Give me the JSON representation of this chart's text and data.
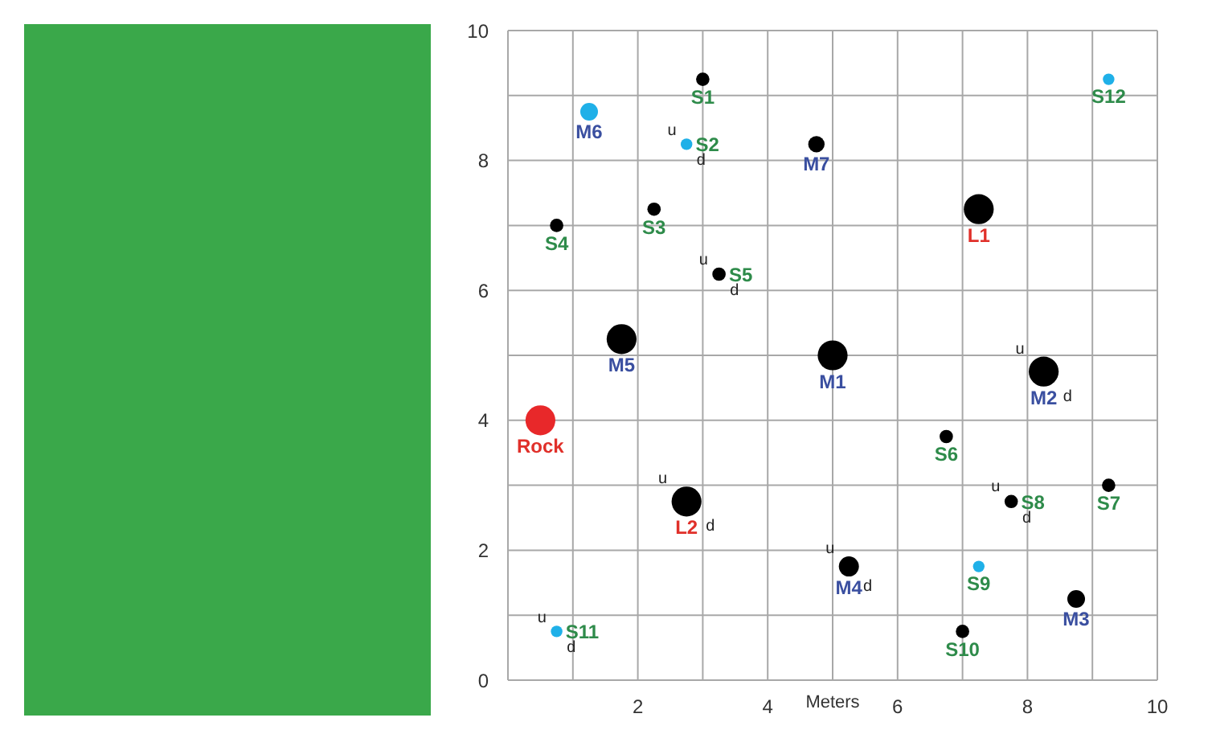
{
  "chart_data": {
    "type": "bubble",
    "xlabel": "Meters",
    "xlim": [
      0,
      10
    ],
    "ylim": [
      0,
      10
    ],
    "xticks": [
      {
        "value": 0,
        "label": null
      },
      {
        "value": 1,
        "label": null
      },
      2,
      {
        "value": 3,
        "label": null
      },
      4,
      {
        "value": 5,
        "label": null
      },
      6,
      {
        "value": 7,
        "label": null
      },
      8,
      {
        "value": 9,
        "label": null
      },
      10
    ],
    "yticks": [
      0,
      {
        "value": 1,
        "label": null
      },
      2,
      {
        "value": 3,
        "label": null
      },
      4,
      {
        "value": 5,
        "label": null
      },
      6,
      {
        "value": 7,
        "label": null
      },
      8,
      {
        "value": 9,
        "label": null
      },
      10
    ],
    "grid": true,
    "marker": "circle",
    "series": [
      {
        "color": "#2e8b4a",
        "x": [
          3.0,
          2.75,
          2.25,
          0.75,
          3.25,
          6.75,
          9.25,
          7.75,
          7.25,
          7.0,
          0.75,
          9.25
        ],
        "values": [
          9.25,
          8.25,
          7.25,
          7.0,
          6.25,
          3.75,
          3.0,
          2.75,
          1.75,
          0.75,
          0.75,
          9.25
        ],
        "sizes": [
          0.2,
          0.15,
          0.2,
          0.2,
          0.2,
          0.2,
          0.2,
          0.2,
          0.15,
          0.2,
          0.15,
          0.15
        ],
        "colors": [
          "#000000",
          "#1fb0e8",
          "#000000",
          "#000000",
          "#000000",
          "#000000",
          "#000000",
          "#000000",
          "#1fb0e8",
          "#000000",
          "#1fb0e8",
          "#1fb0e8"
        ],
        "value_labels": [
          "S1",
          "S2",
          "S3",
          "S4",
          "S5",
          "S6",
          "S7",
          "S8",
          "S9",
          "S10",
          "S11",
          "S12"
        ]
      },
      {
        "color": "#3a4fa0",
        "x": [
          5.0,
          8.25,
          8.75,
          5.25,
          1.75,
          1.25,
          4.75
        ],
        "values": [
          5.0,
          4.75,
          1.25,
          1.75,
          5.25,
          8.75,
          8.25
        ],
        "sizes": [
          1,
          1,
          0.35,
          0.45,
          1,
          0.35,
          0.3
        ],
        "colors": [
          "#000000",
          "#000000",
          "#000000",
          "#000000",
          "#000000",
          "#1fb0e8",
          "#000000"
        ],
        "value_labels": [
          "M1",
          "M2",
          "M3",
          "M4",
          "M5",
          "M6",
          "M7"
        ]
      },
      {
        "color": "#e0302a",
        "x": [
          7.25,
          2.75,
          0.5
        ],
        "values": [
          7.25,
          2.75,
          4.0
        ],
        "sizes": [
          1,
          1,
          1
        ],
        "colors": [
          "#000000",
          "#000000",
          "#e8282a"
        ],
        "value_labels": [
          "L1",
          "L2",
          "Rock"
        ]
      }
    ],
    "annotations": [
      {
        "text": "u",
        "x": 2.75,
        "y": 8.25
      },
      {
        "text": "d",
        "x": 2.75,
        "y": 8.25
      },
      {
        "text": "u",
        "x": 3.25,
        "y": 6.25
      },
      {
        "text": "d",
        "x": 3.25,
        "y": 6.25
      },
      {
        "text": "u",
        "x": 2.75,
        "y": 2.75
      },
      {
        "text": "d",
        "x": 2.75,
        "y": 2.75
      },
      {
        "text": "u",
        "x": 0.75,
        "y": 0.75
      },
      {
        "text": "d",
        "x": 0.75,
        "y": 0.75
      },
      {
        "text": "u",
        "x": 5.25,
        "y": 1.75
      },
      {
        "text": "d",
        "x": 5.25,
        "y": 1.75
      },
      {
        "text": "u",
        "x": 8.25,
        "y": 4.75
      },
      {
        "text": "d",
        "x": 8.25,
        "y": 4.75
      },
      {
        "text": "u",
        "x": 7.75,
        "y": 2.75
      },
      {
        "text": "d",
        "x": 7.75,
        "y": 2.75
      }
    ]
  }
}
